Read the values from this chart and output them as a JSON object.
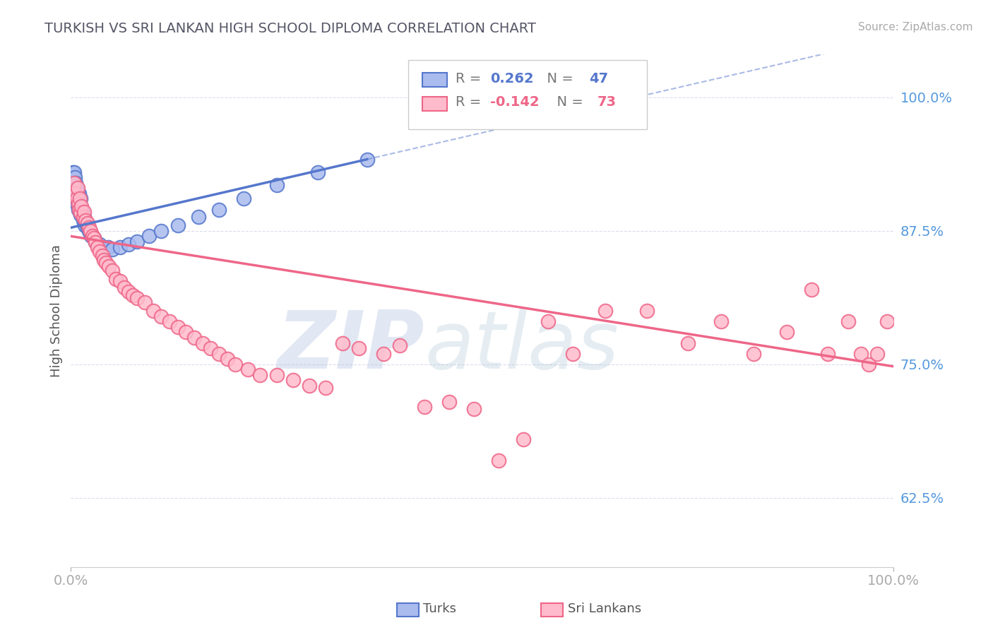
{
  "title": "TURKISH VS SRI LANKAN HIGH SCHOOL DIPLOMA CORRELATION CHART",
  "source_text": "Source: ZipAtlas.com",
  "ylabel": "High School Diploma",
  "xlim": [
    0.0,
    1.0
  ],
  "ylim": [
    0.56,
    1.04
  ],
  "x_ticks": [
    0.0,
    1.0
  ],
  "x_tick_labels": [
    "0.0%",
    "100.0%"
  ],
  "y_ticks": [
    0.625,
    0.75,
    0.875,
    1.0
  ],
  "y_tick_labels": [
    "62.5%",
    "75.0%",
    "87.5%",
    "100.0%"
  ],
  "turks_R": 0.262,
  "turks_N": 47,
  "srilankans_R": -0.142,
  "srilankans_N": 73,
  "blue_color": "#5577CC",
  "pink_color": "#EE6688",
  "blue_fill": "#AABBEE",
  "pink_fill": "#FFBBCC",
  "legend_label_turks": "Turks",
  "legend_label_sri": "Sri Lankans",
  "watermark_zip": "ZIP",
  "watermark_atlas": "atlas",
  "grid_color": "#DDDDEE",
  "title_color": "#555566",
  "tick_color": "#5599DD",
  "background_color": "#FFFFFF",
  "turks_x": [
    0.002,
    0.003,
    0.003,
    0.004,
    0.004,
    0.005,
    0.005,
    0.006,
    0.006,
    0.007,
    0.007,
    0.008,
    0.008,
    0.009,
    0.009,
    0.01,
    0.01,
    0.011,
    0.012,
    0.012,
    0.013,
    0.014,
    0.015,
    0.016,
    0.017,
    0.018,
    0.02,
    0.022,
    0.025,
    0.028,
    0.03,
    0.035,
    0.04,
    0.045,
    0.05,
    0.06,
    0.07,
    0.08,
    0.095,
    0.11,
    0.13,
    0.155,
    0.18,
    0.21,
    0.25,
    0.3,
    0.36
  ],
  "turks_y": [
    0.93,
    0.92,
    0.91,
    0.93,
    0.915,
    0.925,
    0.91,
    0.92,
    0.908,
    0.915,
    0.9,
    0.912,
    0.905,
    0.908,
    0.895,
    0.91,
    0.9,
    0.895,
    0.905,
    0.89,
    0.895,
    0.892,
    0.885,
    0.888,
    0.88,
    0.883,
    0.878,
    0.875,
    0.87,
    0.868,
    0.865,
    0.862,
    0.858,
    0.86,
    0.858,
    0.86,
    0.862,
    0.865,
    0.87,
    0.875,
    0.88,
    0.888,
    0.895,
    0.905,
    0.918,
    0.93,
    0.942
  ],
  "srilankans_x": [
    0.004,
    0.006,
    0.007,
    0.008,
    0.009,
    0.01,
    0.011,
    0.012,
    0.013,
    0.015,
    0.016,
    0.018,
    0.02,
    0.022,
    0.024,
    0.026,
    0.028,
    0.03,
    0.032,
    0.035,
    0.038,
    0.04,
    0.043,
    0.046,
    0.05,
    0.055,
    0.06,
    0.065,
    0.07,
    0.075,
    0.08,
    0.09,
    0.1,
    0.11,
    0.12,
    0.13,
    0.14,
    0.15,
    0.16,
    0.17,
    0.18,
    0.19,
    0.2,
    0.215,
    0.23,
    0.25,
    0.27,
    0.29,
    0.31,
    0.33,
    0.35,
    0.38,
    0.4,
    0.43,
    0.46,
    0.49,
    0.52,
    0.55,
    0.58,
    0.61,
    0.65,
    0.7,
    0.75,
    0.79,
    0.83,
    0.87,
    0.9,
    0.92,
    0.945,
    0.96,
    0.97,
    0.98,
    0.992
  ],
  "srilankans_y": [
    0.92,
    0.91,
    0.905,
    0.915,
    0.9,
    0.895,
    0.905,
    0.892,
    0.898,
    0.888,
    0.893,
    0.885,
    0.882,
    0.878,
    0.875,
    0.87,
    0.868,
    0.864,
    0.86,
    0.856,
    0.852,
    0.848,
    0.845,
    0.842,
    0.838,
    0.83,
    0.828,
    0.822,
    0.818,
    0.815,
    0.812,
    0.808,
    0.8,
    0.795,
    0.79,
    0.785,
    0.78,
    0.775,
    0.77,
    0.765,
    0.76,
    0.755,
    0.75,
    0.745,
    0.74,
    0.74,
    0.735,
    0.73,
    0.728,
    0.77,
    0.765,
    0.76,
    0.768,
    0.71,
    0.715,
    0.708,
    0.66,
    0.68,
    0.79,
    0.76,
    0.8,
    0.8,
    0.77,
    0.79,
    0.76,
    0.78,
    0.82,
    0.76,
    0.79,
    0.76,
    0.75,
    0.76,
    0.79
  ],
  "turks_trend_x": [
    0.0,
    0.36
  ],
  "turks_trend_y": [
    0.878,
    0.942
  ],
  "srilankans_trend_x": [
    0.0,
    1.0
  ],
  "srilankans_trend_y": [
    0.87,
    0.748
  ]
}
